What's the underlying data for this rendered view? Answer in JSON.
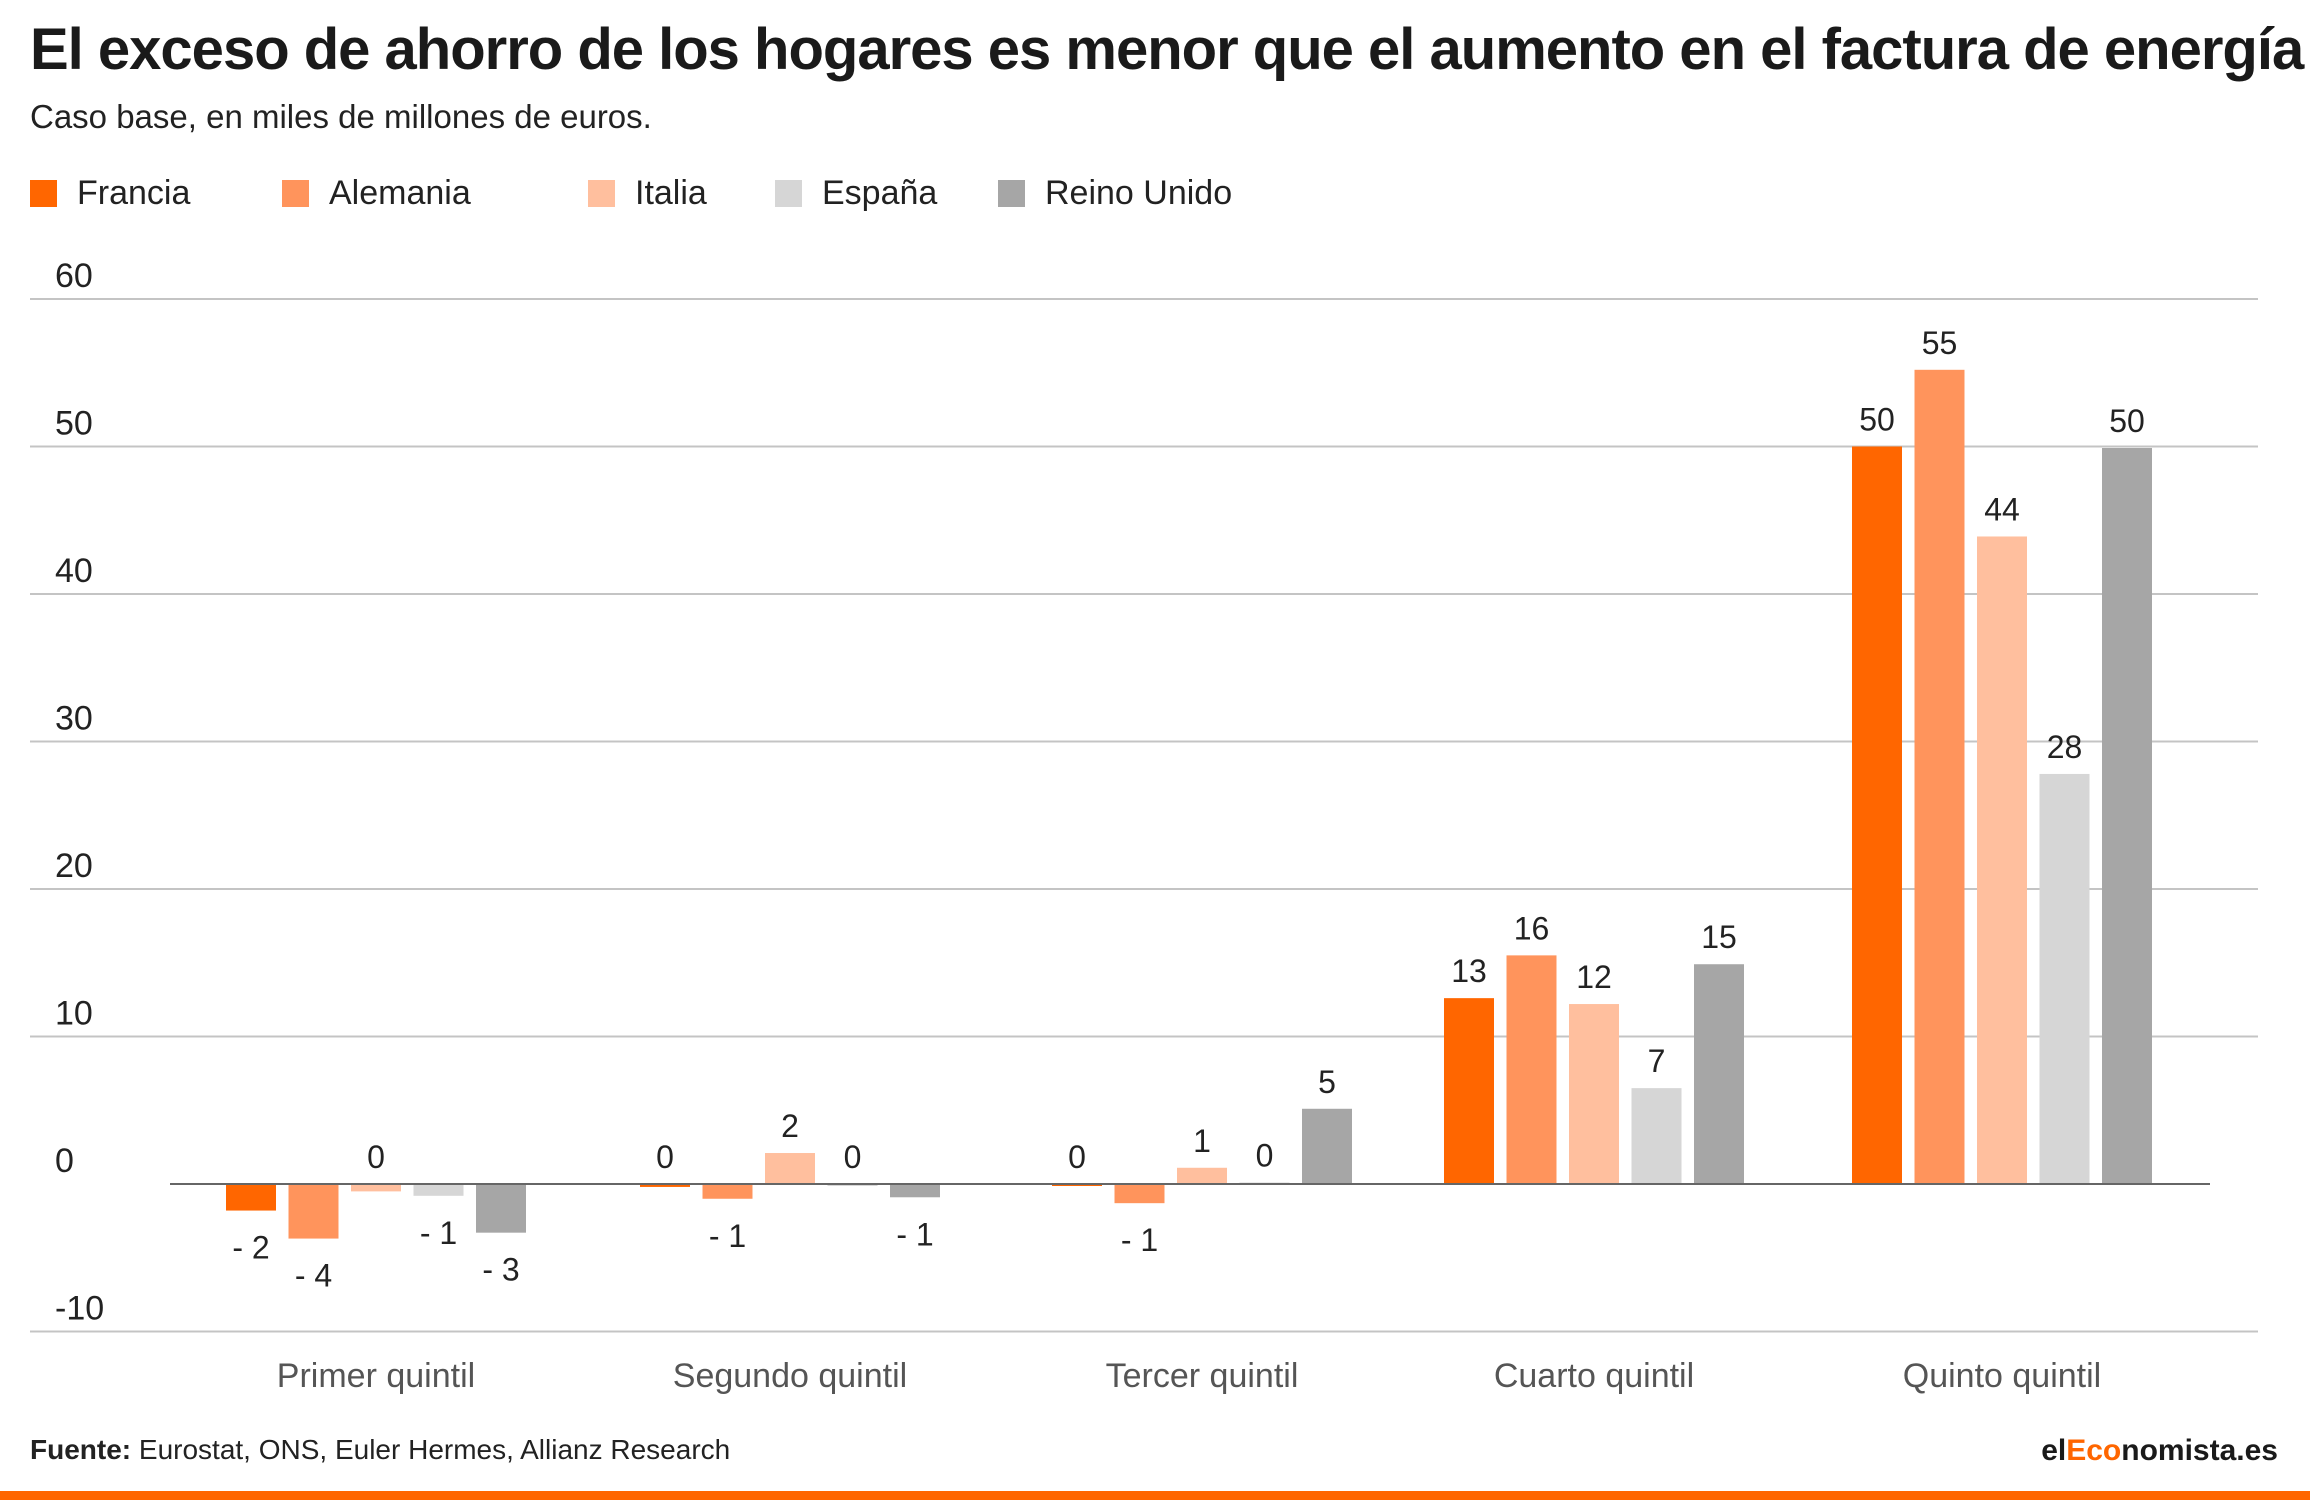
{
  "chart_data": {
    "type": "bar",
    "title": "El exceso de ahorro de los hogares es menor que el aumento en el factura de energía",
    "subtitle": "Caso base, en miles de millones de euros.",
    "categories": [
      "Primer quintil",
      "Segundo quintil",
      "Tercer quintil",
      "Cuarto quintil",
      "Quinto quintil"
    ],
    "series": [
      {
        "name": "Francia",
        "color": "#ff6600",
        "values": [
          -1.8,
          -0.2,
          0.0,
          12.6,
          50.0
        ],
        "labels": [
          "- 2",
          "0",
          "0",
          "13",
          "50"
        ]
      },
      {
        "name": "Alemania",
        "color": "#ff945c",
        "values": [
          -3.7,
          -1.0,
          -1.3,
          15.5,
          55.2
        ],
        "labels": [
          "- 4",
          "- 1",
          "- 1",
          "16",
          "55"
        ]
      },
      {
        "name": "Italia",
        "color": "#ffbf9e",
        "values": [
          -0.5,
          2.1,
          1.1,
          12.2,
          43.9
        ],
        "labels": [
          "0",
          "2",
          "1",
          "12",
          "44"
        ]
      },
      {
        "name": "España",
        "color": "#d6d6d6",
        "values": [
          -0.8,
          0.0,
          0.1,
          6.5,
          27.8
        ],
        "labels": [
          "- 1",
          "0",
          "0",
          "7",
          "28"
        ]
      },
      {
        "name": "Reino Unido",
        "color": "#a6a6a6",
        "values": [
          -3.3,
          -0.9,
          5.1,
          14.9,
          49.9
        ],
        "labels": [
          "- 3",
          "- 1",
          "5",
          "15",
          "50"
        ]
      }
    ],
    "yticks": [
      60,
      50,
      40,
      30,
      20,
      10,
      0,
      -10
    ],
    "ylim": [
      -10,
      60
    ],
    "grid": true,
    "legend": "top-left",
    "source_label": "Fuente:",
    "source_text": " Eurostat, ONS, Euler Hermes, Allianz Research",
    "brand": {
      "prefix": "el",
      "accent": "Eco",
      "suffix": "nomista.es"
    }
  }
}
